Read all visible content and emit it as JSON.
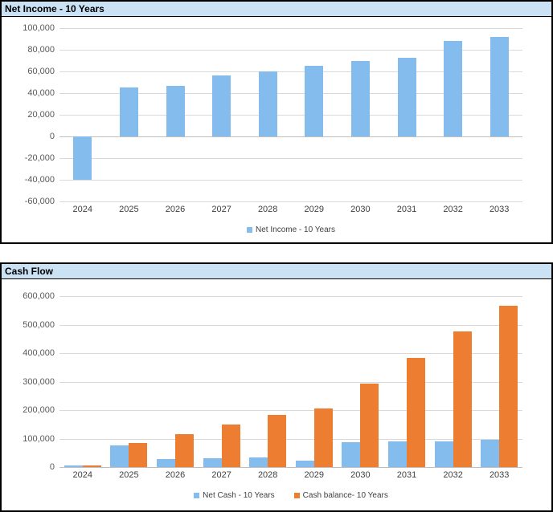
{
  "colors": {
    "bar_blue": "#85BCEE",
    "bar_orange": "#ED7D31",
    "header_bg": "#CBE2F5",
    "gridline": "#D9D9D9",
    "zero_line": "#BFBFBF",
    "axis_text": "#595959",
    "category_text": "#404040",
    "panel_border": "#000000"
  },
  "chart_data": [
    {
      "type": "bar",
      "title": "Net Income - 10 Years",
      "categories": [
        "2024",
        "2025",
        "2026",
        "2027",
        "2028",
        "2029",
        "2030",
        "2031",
        "2032",
        "2033"
      ],
      "series": [
        {
          "name": "Net Income - 10 Years",
          "color": "#85BCEE",
          "values": [
            -40000,
            45000,
            47000,
            56000,
            60000,
            65000,
            70000,
            73000,
            88000,
            92000
          ]
        }
      ],
      "ylim": [
        -60000,
        100000
      ],
      "ytick": 20000,
      "grid": true,
      "legend_position": "bottom"
    },
    {
      "type": "bar",
      "title": "Cash Flow",
      "categories": [
        "2024",
        "2025",
        "2026",
        "2027",
        "2028",
        "2029",
        "2030",
        "2031",
        "2032",
        "2033"
      ],
      "series": [
        {
          "name": "Net Cash - 10 Years",
          "color": "#85BCEE",
          "values": [
            7000,
            76000,
            29000,
            30000,
            33000,
            22000,
            88000,
            91000,
            91000,
            95000
          ]
        },
        {
          "name": "Cash balance- 10 Years",
          "color": "#ED7D31",
          "values": [
            7000,
            85000,
            116000,
            150000,
            183000,
            205000,
            292000,
            383000,
            475000,
            565000
          ]
        }
      ],
      "ylim": [
        0,
        600000
      ],
      "ytick": 100000,
      "grid": true,
      "legend_position": "bottom"
    }
  ]
}
